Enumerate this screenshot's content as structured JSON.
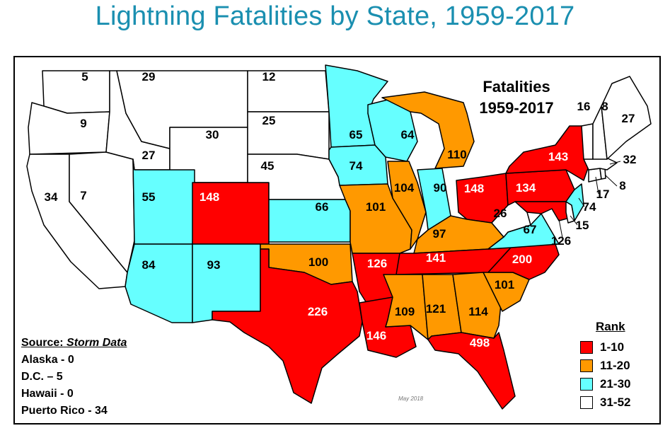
{
  "title": "Lightning Fatalities by State, 1959-2017",
  "fatalities_title": [
    "Fatalities",
    "1959-2017"
  ],
  "source": {
    "label": "Source:",
    "name": "Storm Data",
    "notes": [
      "Alaska - 0",
      "D.C. – 5",
      "Hawaii - 0",
      "Puerto Rico - 34"
    ]
  },
  "stamp": "May 2018",
  "legend": {
    "title": "Rank",
    "items": [
      {
        "label": "1-10",
        "color": "#ff0000"
      },
      {
        "label": "11-20",
        "color": "#ff9900"
      },
      {
        "label": "21-30",
        "color": "#66ffff"
      },
      {
        "label": "31-52",
        "color": "#ffffff"
      }
    ]
  },
  "states": [
    {
      "state": "WA",
      "value": "5",
      "rank": "31-52"
    },
    {
      "state": "OR",
      "value": "9",
      "rank": "31-52"
    },
    {
      "state": "CA",
      "value": "34",
      "rank": "31-52"
    },
    {
      "state": "NV",
      "value": "7",
      "rank": "31-52"
    },
    {
      "state": "ID",
      "value": "27",
      "rank": "31-52"
    },
    {
      "state": "MT",
      "value": "29",
      "rank": "31-52"
    },
    {
      "state": "WY",
      "value": "30",
      "rank": "31-52"
    },
    {
      "state": "UT",
      "value": "55",
      "rank": "21-30"
    },
    {
      "state": "CO",
      "value": "148",
      "rank": "1-10"
    },
    {
      "state": "AZ",
      "value": "84",
      "rank": "21-30"
    },
    {
      "state": "NM",
      "value": "93",
      "rank": "21-30"
    },
    {
      "state": "ND",
      "value": "12",
      "rank": "31-52"
    },
    {
      "state": "SD",
      "value": "25",
      "rank": "31-52"
    },
    {
      "state": "NE",
      "value": "45",
      "rank": "31-52"
    },
    {
      "state": "KS",
      "value": "66",
      "rank": "21-30"
    },
    {
      "state": "OK",
      "value": "100",
      "rank": "11-20"
    },
    {
      "state": "TX",
      "value": "226",
      "rank": "1-10"
    },
    {
      "state": "MN",
      "value": "65",
      "rank": "21-30"
    },
    {
      "state": "IA",
      "value": "74",
      "rank": "21-30"
    },
    {
      "state": "MO",
      "value": "101",
      "rank": "11-20"
    },
    {
      "state": "AR",
      "value": "126",
      "rank": "1-10"
    },
    {
      "state": "LA",
      "value": "146",
      "rank": "1-10"
    },
    {
      "state": "WI",
      "value": "64",
      "rank": "21-30"
    },
    {
      "state": "IL",
      "value": "104",
      "rank": "11-20"
    },
    {
      "state": "MI",
      "value": "110",
      "rank": "11-20"
    },
    {
      "state": "IN",
      "value": "90",
      "rank": "21-30"
    },
    {
      "state": "OH",
      "value": "148",
      "rank": "1-10"
    },
    {
      "state": "KY",
      "value": "97",
      "rank": "11-20"
    },
    {
      "state": "TN",
      "value": "141",
      "rank": "1-10"
    },
    {
      "state": "MS",
      "value": "109",
      "rank": "11-20"
    },
    {
      "state": "AL",
      "value": "121",
      "rank": "11-20"
    },
    {
      "state": "GA",
      "value": "114",
      "rank": "11-20"
    },
    {
      "state": "FL",
      "value": "498",
      "rank": "1-10"
    },
    {
      "state": "SC",
      "value": "101",
      "rank": "11-20"
    },
    {
      "state": "NC",
      "value": "200",
      "rank": "1-10"
    },
    {
      "state": "VA",
      "value": "67",
      "rank": "21-30"
    },
    {
      "state": "WV",
      "value": "26",
      "rank": "31-52"
    },
    {
      "state": "PA",
      "value": "134",
      "rank": "1-10"
    },
    {
      "state": "NY",
      "value": "143",
      "rank": "1-10"
    },
    {
      "state": "MD",
      "value": "126",
      "rank": "1-10"
    },
    {
      "state": "DE",
      "value": "15",
      "rank": "31-52"
    },
    {
      "state": "NJ",
      "value": "74",
      "rank": "21-30"
    },
    {
      "state": "CT",
      "value": "17",
      "rank": "31-52"
    },
    {
      "state": "RI",
      "value": "8",
      "rank": "31-52"
    },
    {
      "state": "MA",
      "value": "32",
      "rank": "31-52"
    },
    {
      "state": "VT",
      "value": "16",
      "rank": "31-52"
    },
    {
      "state": "NH",
      "value": "8",
      "rank": "31-52"
    },
    {
      "state": "ME",
      "value": "27",
      "rank": "31-52"
    }
  ]
}
